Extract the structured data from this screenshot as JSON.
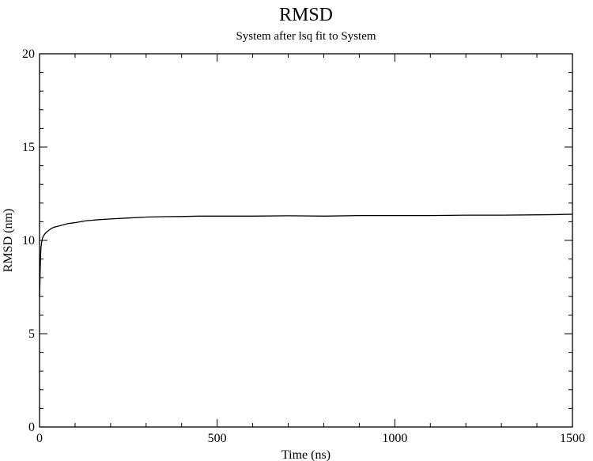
{
  "chart_data": {
    "type": "line",
    "title": "RMSD",
    "subtitle": "System after lsq fit to System",
    "xlabel": "Time (ns)",
    "ylabel": "RMSD (nm)",
    "xlim": [
      0,
      1500
    ],
    "ylim": [
      0,
      20
    ],
    "xticks": [
      "0",
      "500",
      "1000",
      "1500"
    ],
    "yticks": [
      "0",
      "5",
      "10",
      "15",
      "20"
    ],
    "grid": false,
    "legend": "none",
    "line_color": "#000000",
    "series": [
      {
        "x": [
          0,
          1,
          2,
          3,
          4,
          6,
          8,
          10,
          15,
          20,
          30,
          40,
          60,
          80,
          100,
          130,
          160,
          200,
          250,
          300,
          350,
          400,
          450,
          500,
          600,
          700,
          800,
          900,
          1000,
          1100,
          1200,
          1300,
          1400,
          1450,
          1500
        ],
        "y": [
          7.0,
          7.6,
          8.5,
          9.2,
          9.6,
          9.9,
          10.1,
          10.2,
          10.35,
          10.45,
          10.6,
          10.7,
          10.8,
          10.9,
          10.95,
          11.05,
          11.1,
          11.15,
          11.2,
          11.25,
          11.27,
          11.28,
          11.3,
          11.3,
          11.3,
          11.32,
          11.3,
          11.33,
          11.33,
          11.33,
          11.35,
          11.35,
          11.37,
          11.38,
          11.4
        ]
      }
    ]
  }
}
